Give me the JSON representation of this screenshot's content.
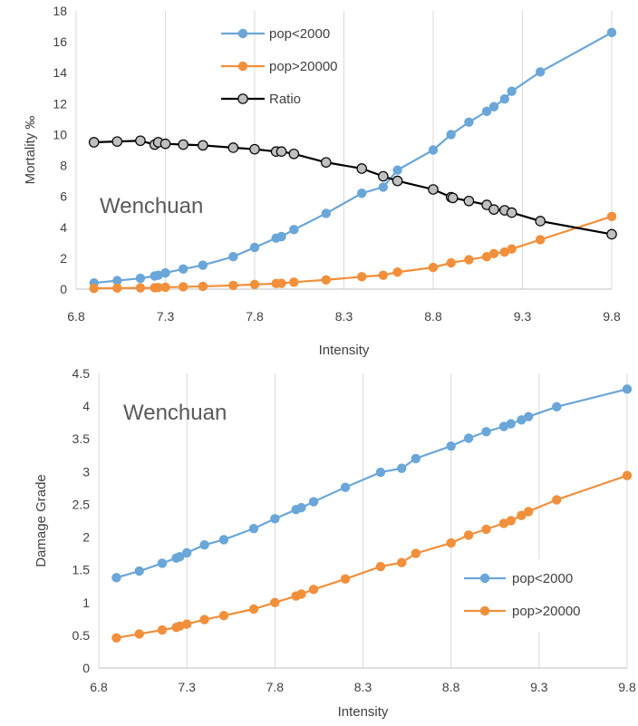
{
  "chart_data": [
    {
      "type": "line",
      "ylabel": "Mortality ‰",
      "xlabel": "Intensity",
      "xlim": [
        6.8,
        9.8
      ],
      "ylim": [
        0,
        18
      ],
      "xticks": [
        "6.8",
        "7.3",
        "7.8",
        "8.3",
        "8.8",
        "9.3",
        "9.8"
      ],
      "yticks": [
        "0",
        "2",
        "4",
        "6",
        "8",
        "10",
        "12",
        "14",
        "16",
        "18"
      ],
      "xtick_values": [
        6.8,
        7.3,
        7.8,
        8.3,
        8.8,
        9.3,
        9.8
      ],
      "ytick_values": [
        0,
        2,
        4,
        6,
        8,
        10,
        12,
        14,
        16,
        18
      ],
      "grid": "vertical",
      "annotation": "Wenchuan",
      "legend_position": "top-center",
      "series": [
        {
          "name": "pop<2000",
          "color": "#6aa6d8",
          "x": [
            6.9,
            7.03,
            7.16,
            7.24,
            7.26,
            7.3,
            7.4,
            7.51,
            7.68,
            7.8,
            7.92,
            7.95,
            8.02,
            8.2,
            8.4,
            8.52,
            8.6,
            8.8,
            8.9,
            9.0,
            9.1,
            9.14,
            9.2,
            9.24,
            9.4,
            9.8
          ],
          "values": [
            0.4,
            0.55,
            0.7,
            0.85,
            0.9,
            1.05,
            1.3,
            1.55,
            2.1,
            2.7,
            3.3,
            3.4,
            3.85,
            4.9,
            6.2,
            6.6,
            7.7,
            9.0,
            10.0,
            10.8,
            11.5,
            11.8,
            12.3,
            12.8,
            14.05,
            16.6
          ]
        },
        {
          "name": "pop>20000",
          "color": "#f28f3b",
          "x": [
            6.9,
            7.03,
            7.16,
            7.24,
            7.26,
            7.3,
            7.4,
            7.51,
            7.68,
            7.8,
            7.92,
            7.95,
            8.02,
            8.2,
            8.4,
            8.52,
            8.6,
            8.8,
            8.9,
            9.0,
            9.1,
            9.14,
            9.2,
            9.24,
            9.4,
            9.8
          ],
          "values": [
            0.05,
            0.07,
            0.08,
            0.09,
            0.1,
            0.12,
            0.15,
            0.18,
            0.24,
            0.3,
            0.36,
            0.38,
            0.45,
            0.6,
            0.8,
            0.9,
            1.1,
            1.4,
            1.7,
            1.9,
            2.1,
            2.3,
            2.4,
            2.6,
            3.2,
            4.7
          ]
        },
        {
          "name": "Ratio",
          "color": "#000000",
          "marker_fill": "#bfbfbf",
          "x": [
            6.9,
            7.03,
            7.16,
            7.24,
            7.26,
            7.3,
            7.4,
            7.51,
            7.68,
            7.8,
            7.92,
            7.95,
            8.02,
            8.2,
            8.4,
            8.52,
            8.6,
            8.8,
            8.9,
            8.91,
            9.0,
            9.1,
            9.14,
            9.2,
            9.24,
            9.4,
            9.8
          ],
          "values": [
            9.5,
            9.55,
            9.6,
            9.35,
            9.5,
            9.4,
            9.35,
            9.3,
            9.15,
            9.05,
            8.9,
            8.9,
            8.75,
            8.2,
            7.8,
            7.3,
            7.0,
            6.45,
            5.95,
            5.9,
            5.7,
            5.45,
            5.15,
            5.1,
            4.95,
            4.4,
            3.55
          ]
        }
      ]
    },
    {
      "type": "line",
      "ylabel": "Damage Grade",
      "xlabel": "Intensity",
      "xlim": [
        6.8,
        9.8
      ],
      "ylim": [
        0,
        4.5
      ],
      "xticks": [
        "6.8",
        "7.3",
        "7.8",
        "8.3",
        "8.8",
        "9.3",
        "9.8"
      ],
      "yticks": [
        "0",
        "0.5",
        "1",
        "1.5",
        "2",
        "2.5",
        "3",
        "3.5",
        "4",
        "4.5"
      ],
      "xtick_values": [
        6.8,
        7.3,
        7.8,
        8.3,
        8.8,
        9.3,
        9.8
      ],
      "ytick_values": [
        0,
        0.5,
        1,
        1.5,
        2,
        2.5,
        3,
        3.5,
        4,
        4.5
      ],
      "grid": "vertical",
      "annotation": "Wenchuan",
      "legend_position": "bottom-right",
      "series": [
        {
          "name": "pop<2000",
          "color": "#6aa6d8",
          "x": [
            6.9,
            7.03,
            7.16,
            7.24,
            7.26,
            7.3,
            7.4,
            7.51,
            7.68,
            7.8,
            7.92,
            7.95,
            8.02,
            8.2,
            8.4,
            8.52,
            8.6,
            8.8,
            8.9,
            9.0,
            9.1,
            9.14,
            9.2,
            9.24,
            9.4,
            9.8
          ],
          "values": [
            1.38,
            1.48,
            1.6,
            1.68,
            1.7,
            1.76,
            1.88,
            1.96,
            2.13,
            2.28,
            2.42,
            2.45,
            2.54,
            2.76,
            2.99,
            3.05,
            3.2,
            3.39,
            3.51,
            3.61,
            3.69,
            3.73,
            3.79,
            3.84,
            3.99,
            4.26
          ]
        },
        {
          "name": "pop>20000",
          "color": "#f28f3b",
          "x": [
            6.9,
            7.03,
            7.16,
            7.24,
            7.26,
            7.3,
            7.4,
            7.51,
            7.68,
            7.8,
            7.92,
            7.95,
            8.02,
            8.2,
            8.4,
            8.52,
            8.6,
            8.8,
            8.9,
            9.0,
            9.1,
            9.14,
            9.2,
            9.24,
            9.4,
            9.8
          ],
          "values": [
            0.46,
            0.52,
            0.58,
            0.62,
            0.64,
            0.67,
            0.74,
            0.8,
            0.9,
            1.0,
            1.1,
            1.13,
            1.2,
            1.36,
            1.55,
            1.61,
            1.75,
            1.91,
            2.03,
            2.12,
            2.21,
            2.25,
            2.33,
            2.39,
            2.57,
            2.94
          ]
        }
      ]
    }
  ]
}
